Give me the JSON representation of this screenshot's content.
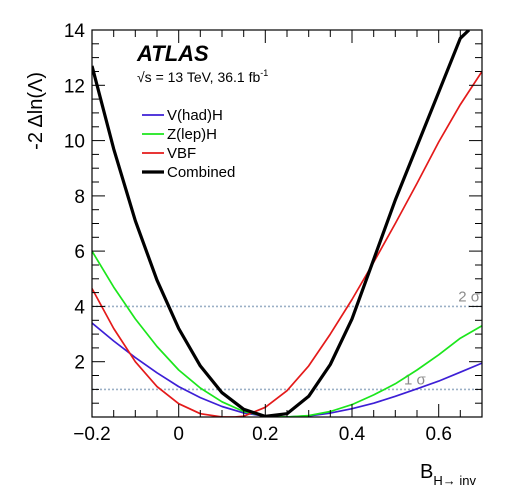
{
  "chart_data": {
    "type": "line",
    "title": "",
    "experiment": "ATLAS",
    "energy_prefix": "√s = 13 TeV, 36.1 fb",
    "energy_sup": "-1",
    "ylabel": "-2 Δln(Λ)",
    "xlabel_main": "B",
    "xlabel_sub": "H→ inv",
    "xlim": [
      -0.2,
      0.7
    ],
    "ylim": [
      0,
      14
    ],
    "x_ticks": [
      {
        "value": -0.2,
        "label": "−0.2"
      },
      {
        "value": 0,
        "label": "0"
      },
      {
        "value": 0.2,
        "label": "0.2"
      },
      {
        "value": 0.4,
        "label": "0.4"
      },
      {
        "value": 0.6,
        "label": "0.6"
      }
    ],
    "y_ticks": [
      {
        "value": 2,
        "label": "2"
      },
      {
        "value": 4,
        "label": "4"
      },
      {
        "value": 6,
        "label": "6"
      },
      {
        "value": 8,
        "label": "8"
      },
      {
        "value": 10,
        "label": "10"
      },
      {
        "value": 12,
        "label": "12"
      },
      {
        "value": 14,
        "label": "14"
      }
    ],
    "reference_lines": [
      {
        "value": 1,
        "label": "1 σ",
        "label_x": 0.52,
        "color": "#9bb0c6"
      },
      {
        "value": 4,
        "label": "2 σ",
        "label_x": 0.645,
        "color": "#9bb0c6"
      }
    ],
    "series": [
      {
        "name": "V(had)H",
        "color": "#3d1fd6",
        "width": 1.7,
        "x": [
          -0.2,
          -0.15,
          -0.1,
          -0.05,
          0.0,
          0.05,
          0.1,
          0.15,
          0.2,
          0.25,
          0.3,
          0.35,
          0.4,
          0.45,
          0.5,
          0.55,
          0.6,
          0.65,
          0.7
        ],
        "y": [
          3.4,
          2.75,
          2.15,
          1.6,
          1.1,
          0.7,
          0.38,
          0.15,
          0.03,
          0.0,
          0.04,
          0.14,
          0.3,
          0.5,
          0.75,
          1.02,
          1.3,
          1.62,
          1.95
        ]
      },
      {
        "name": "Z(lep)H",
        "color": "#1ce61c",
        "width": 1.7,
        "x": [
          -0.2,
          -0.15,
          -0.1,
          -0.05,
          0.0,
          0.05,
          0.1,
          0.15,
          0.2,
          0.25,
          0.3,
          0.35,
          0.4,
          0.45,
          0.5,
          0.55,
          0.6,
          0.65,
          0.7
        ],
        "y": [
          6.0,
          4.7,
          3.55,
          2.55,
          1.7,
          1.05,
          0.55,
          0.2,
          0.03,
          0.0,
          0.05,
          0.2,
          0.45,
          0.8,
          1.2,
          1.7,
          2.25,
          2.85,
          3.3
        ]
      },
      {
        "name": "VBF",
        "color": "#e41a1a",
        "width": 1.7,
        "x": [
          -0.2,
          -0.15,
          -0.1,
          -0.05,
          0.0,
          0.05,
          0.1,
          0.13,
          0.15,
          0.2,
          0.25,
          0.3,
          0.35,
          0.4,
          0.45,
          0.5,
          0.55,
          0.6,
          0.65,
          0.7
        ],
        "y": [
          4.65,
          3.2,
          2.0,
          1.1,
          0.48,
          0.12,
          0.0,
          0.0,
          0.03,
          0.35,
          0.95,
          1.85,
          3.0,
          4.25,
          5.6,
          7.0,
          8.45,
          9.95,
          11.3,
          12.5
        ]
      },
      {
        "name": "Combined",
        "color": "#000000",
        "width": 3.2,
        "x": [
          -0.2,
          -0.15,
          -0.1,
          -0.05,
          0.0,
          0.05,
          0.1,
          0.15,
          0.2,
          0.25,
          0.3,
          0.35,
          0.4,
          0.45,
          0.5,
          0.55,
          0.6,
          0.65,
          0.67
        ],
        "y": [
          12.7,
          9.7,
          7.1,
          4.95,
          3.2,
          1.85,
          0.88,
          0.28,
          0.02,
          0.12,
          0.75,
          1.9,
          3.55,
          5.7,
          7.85,
          9.8,
          11.75,
          13.7,
          14.0
        ]
      }
    ],
    "legend_position": "top-left",
    "grid": false
  }
}
